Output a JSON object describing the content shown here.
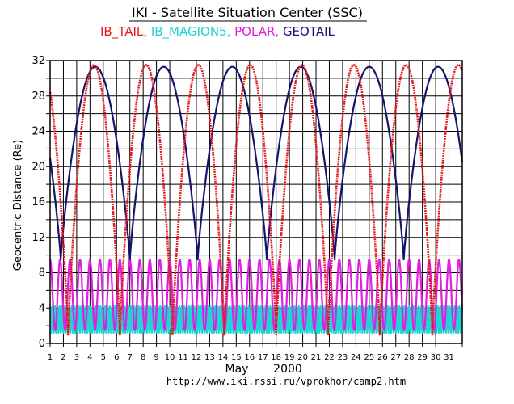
{
  "chart_data": {
    "type": "line",
    "title": "IKI - Satellite Situation Center (SSC)",
    "legend": [
      {
        "name": "IB_TAIL",
        "color": "#e31a1c"
      },
      {
        "name": "IB_MAGION5",
        "color": "#22d3d3"
      },
      {
        "name": "POLAR",
        "color": "#e020e0"
      },
      {
        "name": "GEOTAIL",
        "color": "#14146e"
      }
    ],
    "ylabel": "Geocentric Distance  (Re)",
    "xlabel_month": "May",
    "xlabel_year": "2000",
    "footer": "http://www.iki.rssi.ru/vprokhor/camp2.htm",
    "ylim": [
      0,
      32
    ],
    "xlim": [
      1,
      32
    ],
    "y_ticks": [
      "0",
      "4",
      "8",
      "12",
      "16",
      "20",
      "24",
      "28",
      "32"
    ],
    "x_ticks": [
      "1",
      "2",
      "3",
      "4",
      "5",
      "6",
      "7",
      "8",
      "9",
      "10",
      "11",
      "12",
      "13",
      "14",
      "15",
      "16",
      "17",
      "18",
      "19",
      "20",
      "21",
      "22",
      "23",
      "24",
      "25",
      "26",
      "27",
      "28",
      "29",
      "30",
      "31"
    ],
    "grid": true,
    "series": [
      {
        "name": "IB_TAIL",
        "color": "#e31a1c",
        "style": "dotted",
        "minima_days": [
          2.35,
          6.25,
          10.2,
          14.1,
          18.0,
          21.9,
          25.8,
          29.75
        ],
        "min_value": 1.0,
        "max_value": 31.5
      },
      {
        "name": "GEOTAIL",
        "color": "#14146e",
        "style": "solid",
        "minima_days": [
          1.8,
          7.0,
          12.1,
          17.3,
          22.4,
          27.6
        ],
        "min_value": 9.5,
        "max_value": 31.3
      },
      {
        "name": "POLAR",
        "color": "#e020e0",
        "style": "solid",
        "period_days": 0.75,
        "min_value": 1.5,
        "max_value": 9.5
      },
      {
        "name": "IB_MAGION5",
        "color": "#22d3d3",
        "style": "solid",
        "period_days": 0.18,
        "min_value": 1.2,
        "max_value": 4.2
      }
    ]
  }
}
